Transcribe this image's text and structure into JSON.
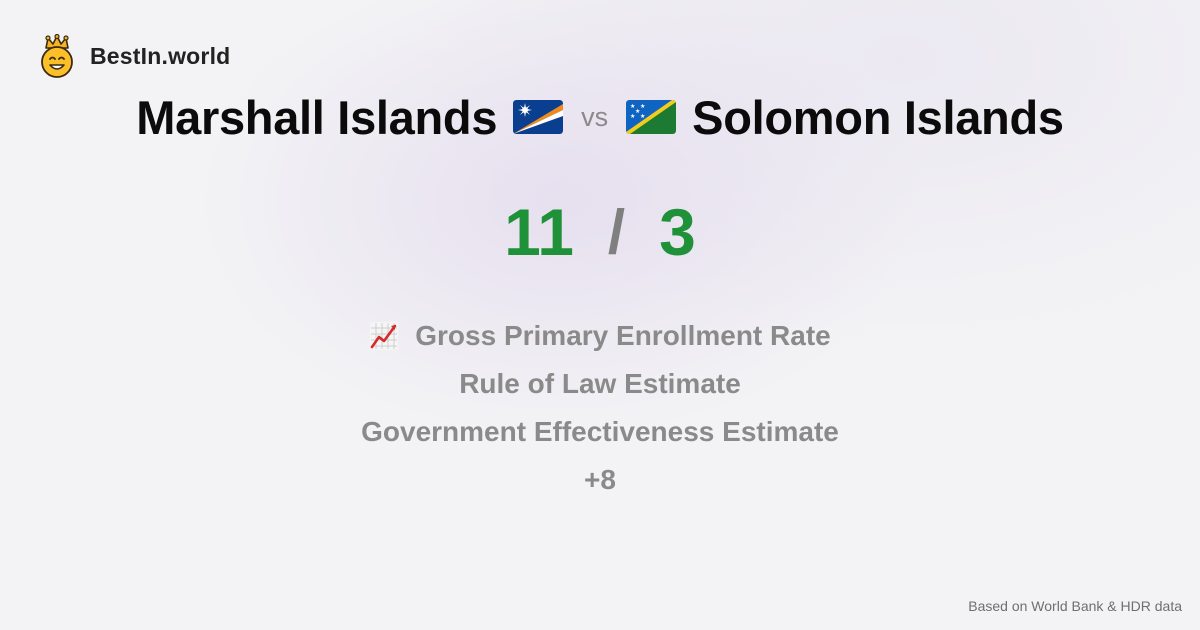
{
  "brand": {
    "name": "BestIn.world",
    "logo_icon": "crowned-smiley-icon"
  },
  "comparison": {
    "left_country": "Marshall Islands",
    "left_flag_icon": "marshall-islands-flag-icon",
    "vs_label": "vs",
    "right_country": "Solomon Islands",
    "right_flag_icon": "solomon-islands-flag-icon"
  },
  "score": {
    "left": "11",
    "separator": "/",
    "right": "3",
    "color": "#1f9138"
  },
  "metrics": {
    "items": [
      {
        "label": "Gross Primary Enrollment Rate",
        "icon": "chart-increasing-icon"
      },
      {
        "label": "Rule of Law Estimate"
      },
      {
        "label": "Government Effectiveness Estimate"
      }
    ],
    "more": "+8"
  },
  "footer": {
    "source": "Based on World Bank & HDR data"
  }
}
